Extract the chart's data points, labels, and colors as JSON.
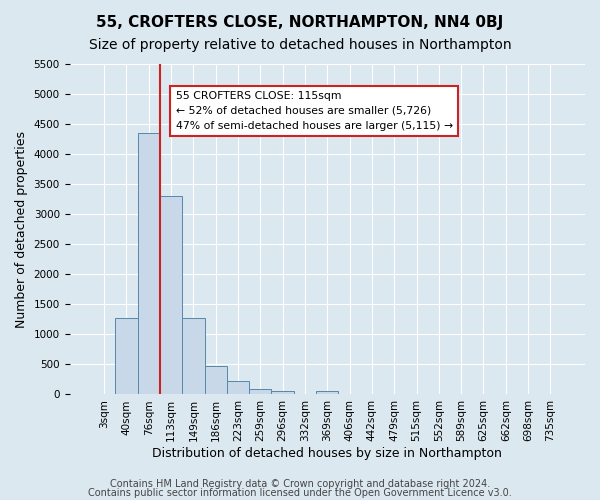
{
  "title": "55, CROFTERS CLOSE, NORTHAMPTON, NN4 0BJ",
  "subtitle": "Size of property relative to detached houses in Northampton",
  "xlabel": "Distribution of detached houses by size in Northampton",
  "ylabel": "Number of detached properties",
  "bin_labels": [
    "3sqm",
    "40sqm",
    "76sqm",
    "113sqm",
    "149sqm",
    "186sqm",
    "223sqm",
    "259sqm",
    "296sqm",
    "332sqm",
    "369sqm",
    "406sqm",
    "442sqm",
    "479sqm",
    "515sqm",
    "552sqm",
    "589sqm",
    "625sqm",
    "662sqm",
    "698sqm",
    "735sqm"
  ],
  "bar_values": [
    0,
    1270,
    4350,
    3300,
    1270,
    480,
    230,
    90,
    60,
    0,
    60,
    0,
    0,
    0,
    0,
    0,
    0,
    0,
    0,
    0,
    0
  ],
  "bar_color": "#c8d8e8",
  "bar_edge_color": "#5588aa",
  "vline_color": "#cc2222",
  "annotation_text": "55 CROFTERS CLOSE: 115sqm\n← 52% of detached houses are smaller (5,726)\n47% of semi-detached houses are larger (5,115) →",
  "annotation_box_color": "white",
  "annotation_box_edge": "#cc2222",
  "ylim": [
    0,
    5500
  ],
  "yticks": [
    0,
    500,
    1000,
    1500,
    2000,
    2500,
    3000,
    3500,
    4000,
    4500,
    5000,
    5500
  ],
  "footer1": "Contains HM Land Registry data © Crown copyright and database right 2024.",
  "footer2": "Contains public sector information licensed under the Open Government Licence v3.0.",
  "bg_color": "#dce8f0",
  "plot_bg_color": "#dce8f0",
  "title_fontsize": 11,
  "subtitle_fontsize": 10,
  "axis_label_fontsize": 9,
  "tick_fontsize": 7.5,
  "footer_fontsize": 7
}
